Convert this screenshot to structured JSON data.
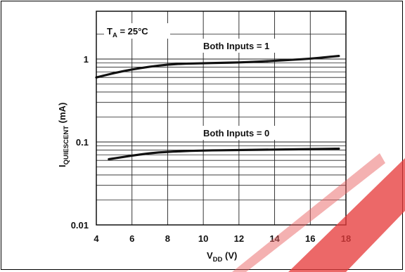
{
  "chart_data": {
    "type": "line",
    "title": "",
    "xlabel": {
      "main": "V",
      "sub": "DD",
      "unit": " (V)"
    },
    "ylabel": {
      "main": "I",
      "sub": "QUIESCENT",
      "unit": " (mA)"
    },
    "xlim": [
      4,
      18
    ],
    "ylim": [
      0.01,
      2
    ],
    "yscale": "log",
    "x_ticks": [
      4,
      6,
      8,
      10,
      12,
      14,
      16,
      18
    ],
    "y_ticks": [
      {
        "value": 0.01,
        "label": "0.01"
      },
      {
        "value": 0.1,
        "label": "0.1"
      },
      {
        "value": 1,
        "label": "1"
      }
    ],
    "grid": true,
    "condition": {
      "main": "T",
      "sub": "A",
      "rest": " = 25°C"
    },
    "series": [
      {
        "name": "Both Inputs = 1",
        "x": [
          4,
          5,
          6,
          7,
          8,
          9,
          10,
          11,
          12,
          13,
          14,
          15,
          16,
          17,
          17.6
        ],
        "y": [
          0.6,
          0.68,
          0.75,
          0.81,
          0.86,
          0.88,
          0.89,
          0.9,
          0.91,
          0.93,
          0.95,
          0.98,
          1.01,
          1.06,
          1.09
        ]
      },
      {
        "name": "Both Inputs = 0",
        "x": [
          4.7,
          5.5,
          6.5,
          7.5,
          8.5,
          10,
          12,
          14,
          16,
          17.6
        ],
        "y": [
          0.062,
          0.066,
          0.071,
          0.075,
          0.077,
          0.079,
          0.08,
          0.081,
          0.082,
          0.083
        ]
      }
    ]
  }
}
